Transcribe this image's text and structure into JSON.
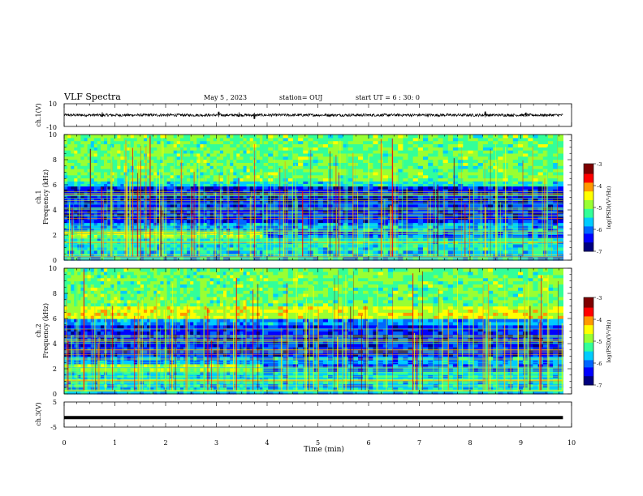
{
  "header": {
    "title": "VLF Spectra",
    "date": "May 5 , 2023",
    "station": "station= OUJ",
    "start": "start UT = 6 : 30: 0"
  },
  "chart_data": [
    {
      "type": "line",
      "name": "ch1-waveform",
      "ylabel": "ch.1(V)",
      "ylim": [
        -10,
        10
      ],
      "yticks": [
        "10",
        "-10"
      ],
      "xlim": [
        0,
        10
      ],
      "baseline": 0,
      "amplitude_typical": 1.2,
      "spikes": [
        {
          "x": 0.75,
          "y": 2.6
        },
        {
          "x": 3.05,
          "y": 3.0
        },
        {
          "x": 3.45,
          "y": 2.5
        },
        {
          "x": 3.75,
          "y": -3.5
        },
        {
          "x": 8.3,
          "y": 3.2
        },
        {
          "x": 9.1,
          "y": 2.2
        }
      ]
    },
    {
      "type": "heatmap",
      "name": "ch1-spectrogram",
      "ylabel": "ch.1\nFrequency (kHz)",
      "xlim": [
        0,
        10
      ],
      "ylim": [
        0,
        10
      ],
      "yticks": [
        "0",
        "2",
        "4",
        "6",
        "8",
        "10"
      ],
      "time_range_min": [
        0,
        9.83
      ],
      "bands_khz": [
        {
          "f0": 0,
          "f1": 0.8,
          "level": 0.35
        },
        {
          "f0": 0.8,
          "f1": 1.8,
          "level": 0.4
        },
        {
          "f0": 1.8,
          "f1": 2.3,
          "level": 0.55
        },
        {
          "f0": 2.3,
          "f1": 3.0,
          "level": 0.3
        },
        {
          "f0": 3.0,
          "f1": 4.5,
          "level": 0.18
        },
        {
          "f0": 4.5,
          "f1": 5.9,
          "level": 0.15
        },
        {
          "f0": 5.9,
          "f1": 6.3,
          "level": 0.4
        },
        {
          "f0": 6.3,
          "f1": 10,
          "level": 0.5
        }
      ],
      "shift_time_min": 3.92,
      "low_band_after_shift": {
        "f0": 1.8,
        "f1": 2.3,
        "level": 0.25
      }
    },
    {
      "type": "heatmap",
      "name": "ch2-spectrogram",
      "ylabel": "ch.2\nFrequency (kHz)",
      "xlim": [
        0,
        10
      ],
      "ylim": [
        0,
        10
      ],
      "yticks": [
        "0",
        "2",
        "4",
        "6",
        "8",
        "10"
      ],
      "time_range_min": [
        0,
        9.83
      ],
      "bands_khz": [
        {
          "f0": 0,
          "f1": 0.8,
          "level": 0.35
        },
        {
          "f0": 0.8,
          "f1": 1.8,
          "level": 0.38
        },
        {
          "f0": 1.8,
          "f1": 2.4,
          "level": 0.55
        },
        {
          "f0": 2.4,
          "f1": 3.0,
          "level": 0.3
        },
        {
          "f0": 3.0,
          "f1": 5.5,
          "level": 0.18
        },
        {
          "f0": 5.5,
          "f1": 6.0,
          "level": 0.3
        },
        {
          "f0": 6.0,
          "f1": 7.0,
          "level": 0.62
        },
        {
          "f0": 7.0,
          "f1": 10,
          "level": 0.5
        }
      ],
      "shift_time_min": 3.92,
      "low_band_after_shift": {
        "f0": 1.8,
        "f1": 2.4,
        "level": 0.25
      }
    },
    {
      "type": "line",
      "name": "ch3-waveform",
      "ylabel": "ch.3(V)",
      "ylim": [
        -5,
        5
      ],
      "yticks": [
        "5",
        "-5"
      ],
      "xlim": [
        0,
        10
      ],
      "value": -1.2
    }
  ],
  "xaxis": {
    "label": "Time (min)",
    "ticks": [
      "0",
      "1",
      "2",
      "3",
      "4",
      "5",
      "6",
      "7",
      "8",
      "9",
      "10"
    ]
  },
  "colorbar": {
    "label": "log(PSD)(V²/Hz)",
    "ticks": [
      "-3",
      "-4",
      "-5",
      "-6",
      "-7"
    ],
    "range": [
      -7,
      -3
    ]
  },
  "colors": {
    "palette": [
      "#00007f",
      "#0000ff",
      "#0066ff",
      "#00ccff",
      "#33ff99",
      "#99ff33",
      "#ffff00",
      "#ff9900",
      "#ff0000",
      "#7f0000"
    ]
  }
}
